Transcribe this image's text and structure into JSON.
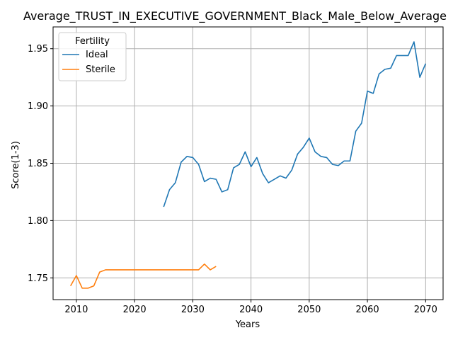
{
  "chart_data": {
    "type": "line",
    "title": "Average_TRUST_IN_EXECUTIVE_GOVERNMENT_Black_Male_Below_Average",
    "xlabel": "Years",
    "ylabel": "Score(1-3)",
    "xlim": [
      2006,
      2073
    ],
    "ylim": [
      1.731,
      1.969
    ],
    "xticks": [
      2010,
      2020,
      2030,
      2040,
      2050,
      2060,
      2070
    ],
    "yticks": [
      1.75,
      1.8,
      1.85,
      1.9,
      1.95
    ],
    "xtick_labels": [
      "2010",
      "2020",
      "2030",
      "2040",
      "2050",
      "2060",
      "2070"
    ],
    "ytick_labels": [
      "1.75",
      "1.80",
      "1.85",
      "1.90",
      "1.95"
    ],
    "grid": true,
    "legend": {
      "title": "Fertility",
      "placement": "upper-left"
    },
    "series": [
      {
        "name": "Ideal",
        "color": "#1f77b4",
        "x": [
          2025,
          2026,
          2027,
          2028,
          2029,
          2030,
          2031,
          2032,
          2033,
          2034,
          2035,
          2036,
          2037,
          2038,
          2039,
          2040,
          2041,
          2042,
          2043,
          2044,
          2045,
          2046,
          2047,
          2048,
          2049,
          2050,
          2051,
          2052,
          2053,
          2054,
          2055,
          2056,
          2057,
          2058,
          2059,
          2060,
          2061,
          2062,
          2063,
          2064,
          2065,
          2066,
          2067,
          2068,
          2069,
          2070
        ],
        "y": [
          1.812,
          1.827,
          1.833,
          1.851,
          1.856,
          1.855,
          1.849,
          1.834,
          1.837,
          1.836,
          1.825,
          1.827,
          1.846,
          1.849,
          1.86,
          1.847,
          1.855,
          1.841,
          1.833,
          1.836,
          1.839,
          1.837,
          1.844,
          1.858,
          1.864,
          1.872,
          1.86,
          1.856,
          1.855,
          1.849,
          1.848,
          1.852,
          1.852,
          1.878,
          1.885,
          1.913,
          1.911,
          1.928,
          1.932,
          1.933,
          1.944,
          1.944,
          1.944,
          1.956,
          1.925,
          1.937
        ]
      },
      {
        "name": "Sterile",
        "color": "#ff7f0e",
        "x": [
          2009,
          2010,
          2011,
          2012,
          2013,
          2014,
          2015,
          2016,
          2017,
          2018,
          2019,
          2020,
          2021,
          2022,
          2023,
          2024,
          2025,
          2026,
          2027,
          2028,
          2029,
          2030,
          2031,
          2032,
          2033,
          2034
        ],
        "y": [
          1.743,
          1.752,
          1.741,
          1.741,
          1.743,
          1.755,
          1.757,
          1.757,
          1.757,
          1.757,
          1.757,
          1.757,
          1.757,
          1.757,
          1.757,
          1.757,
          1.757,
          1.757,
          1.757,
          1.757,
          1.757,
          1.757,
          1.757,
          1.762,
          1.757,
          1.76
        ]
      }
    ]
  }
}
